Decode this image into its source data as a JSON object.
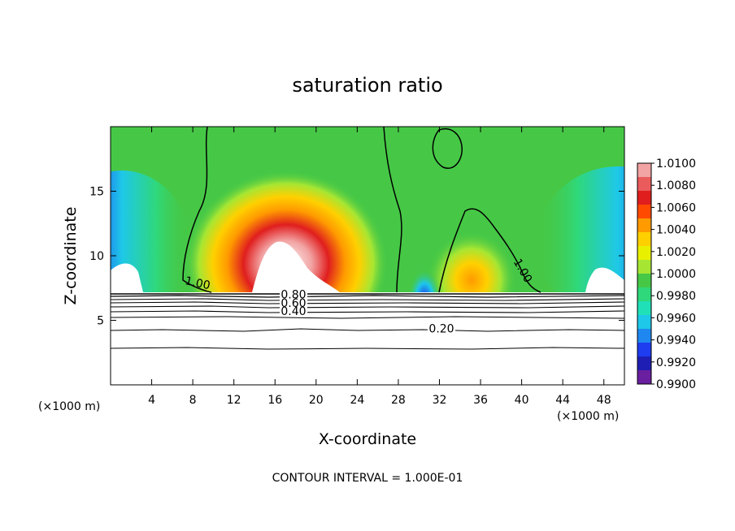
{
  "chart_data": {
    "type": "heatmap",
    "title": "saturation ratio",
    "xlabel": "X-coordinate",
    "ylabel": "Z-coordinate",
    "x_unit_left": "(×1000 m)",
    "x_unit_right": "(×1000 m)",
    "xlim": [
      0,
      50
    ],
    "ylim": [
      0,
      20
    ],
    "x_ticks": [
      4,
      8,
      12,
      16,
      20,
      24,
      28,
      32,
      36,
      40,
      44,
      48
    ],
    "y_ticks": [
      5,
      10,
      15
    ],
    "footer": "CONTOUR INTERVAL = 1.000E-01",
    "colorbar": {
      "min": 0.99,
      "max": 1.01,
      "labels": [
        "1.0100",
        "1.0080",
        "1.0060",
        "1.0040",
        "1.0020",
        "1.0000",
        "0.9980",
        "0.9960",
        "0.9940",
        "0.9920",
        "0.9900"
      ],
      "colors": [
        "#f2a3a3",
        "#ea5c5c",
        "#e01e1e",
        "#ff4a00",
        "#ff9a00",
        "#ffd000",
        "#e8f000",
        "#a6e633",
        "#46c846",
        "#2fd87a",
        "#20e0b8",
        "#1ec8e8",
        "#1e88f0",
        "#1e3cf0",
        "#1e1eb4",
        "#6a1ea0"
      ]
    },
    "contour_labels": [
      {
        "text": "1.00",
        "x": 8.4,
        "z": 7.6
      },
      {
        "text": "0.80",
        "x": 17.8,
        "z": 6.7
      },
      {
        "text": "0.60",
        "x": 17.8,
        "z": 6.05
      },
      {
        "text": "0.40",
        "x": 17.8,
        "z": 5.4
      },
      {
        "text": "0.20",
        "x": 32.2,
        "z": 4.05
      },
      {
        "text": "1.00",
        "x": 39.8,
        "z": 8.7
      }
    ],
    "grid": false,
    "legend_placement": "right colorbar"
  }
}
